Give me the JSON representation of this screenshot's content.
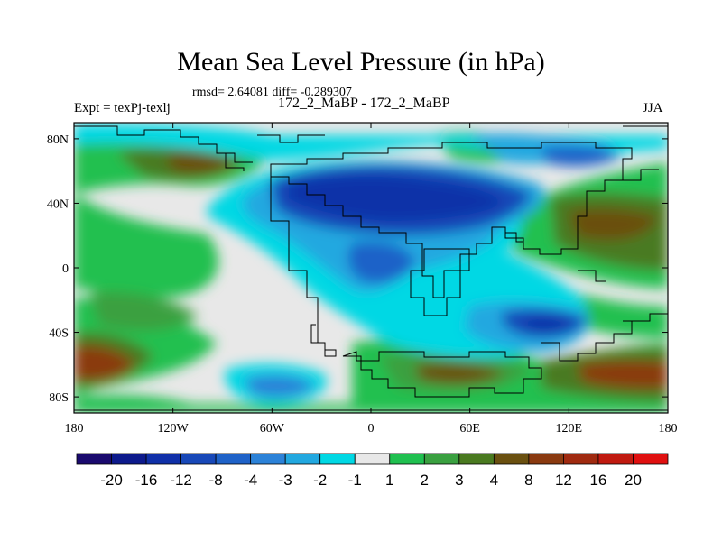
{
  "chart_data": {
    "type": "heatmap",
    "title": "Mean Sea Level Pressure (in hPa)",
    "stats_text": "rmsd= 2.64081 diff= -0.289307",
    "subtitle": "172_2_MaBP - 172_2_MaBP",
    "left_label": "Expt = texPj-texlj",
    "right_label": "JJA",
    "x_range": [
      -180,
      180
    ],
    "y_range": [
      -90,
      90
    ],
    "x_ticks": [
      {
        "value": -180,
        "label": "180"
      },
      {
        "value": -120,
        "label": "120W"
      },
      {
        "value": -60,
        "label": "60W"
      },
      {
        "value": 0,
        "label": "0"
      },
      {
        "value": 60,
        "label": "60E"
      },
      {
        "value": 120,
        "label": "120E"
      },
      {
        "value": 180,
        "label": "180"
      }
    ],
    "y_ticks": [
      {
        "value": 80,
        "label": "80N"
      },
      {
        "value": 40,
        "label": "40N"
      },
      {
        "value": 0,
        "label": "0"
      },
      {
        "value": -40,
        "label": "40S"
      },
      {
        "value": -80,
        "label": "80S"
      }
    ],
    "colorbar": {
      "levels": [
        "-20",
        "-16",
        "-12",
        "-8",
        "-4",
        "-3",
        "-2",
        "-1",
        "1",
        "2",
        "3",
        "4",
        "8",
        "12",
        "16",
        "20"
      ],
      "colors": [
        "#1a0a6e",
        "#0d1a8c",
        "#1030a8",
        "#1848b8",
        "#1f62c8",
        "#2c82d8",
        "#22a8e0",
        "#00d8e4",
        "#e8e8e8",
        "#20c050",
        "#3aa040",
        "#4a7a20",
        "#6a5010",
        "#8a3a10",
        "#a02a10",
        "#c01a10",
        "#e01010"
      ]
    },
    "regions": [
      {
        "name": "positive anomaly North Pacific",
        "lon": -110,
        "lat": 62,
        "value": 8
      },
      {
        "name": "negative anomaly Europe-Asia",
        "lon": 20,
        "lat": 45,
        "value": -8
      },
      {
        "name": "positive anomaly Northwest Pacific",
        "lon": 150,
        "lat": 25,
        "value": 8
      },
      {
        "name": "negative anomaly Indian Ocean",
        "lon": 110,
        "lat": -35,
        "value": -8
      },
      {
        "name": "positive anomaly Southern Ocean",
        "lon": 60,
        "lat": -72,
        "value": 4
      },
      {
        "name": "positive anomaly South Pacific",
        "lon": -170,
        "lat": -60,
        "value": 8
      }
    ]
  }
}
